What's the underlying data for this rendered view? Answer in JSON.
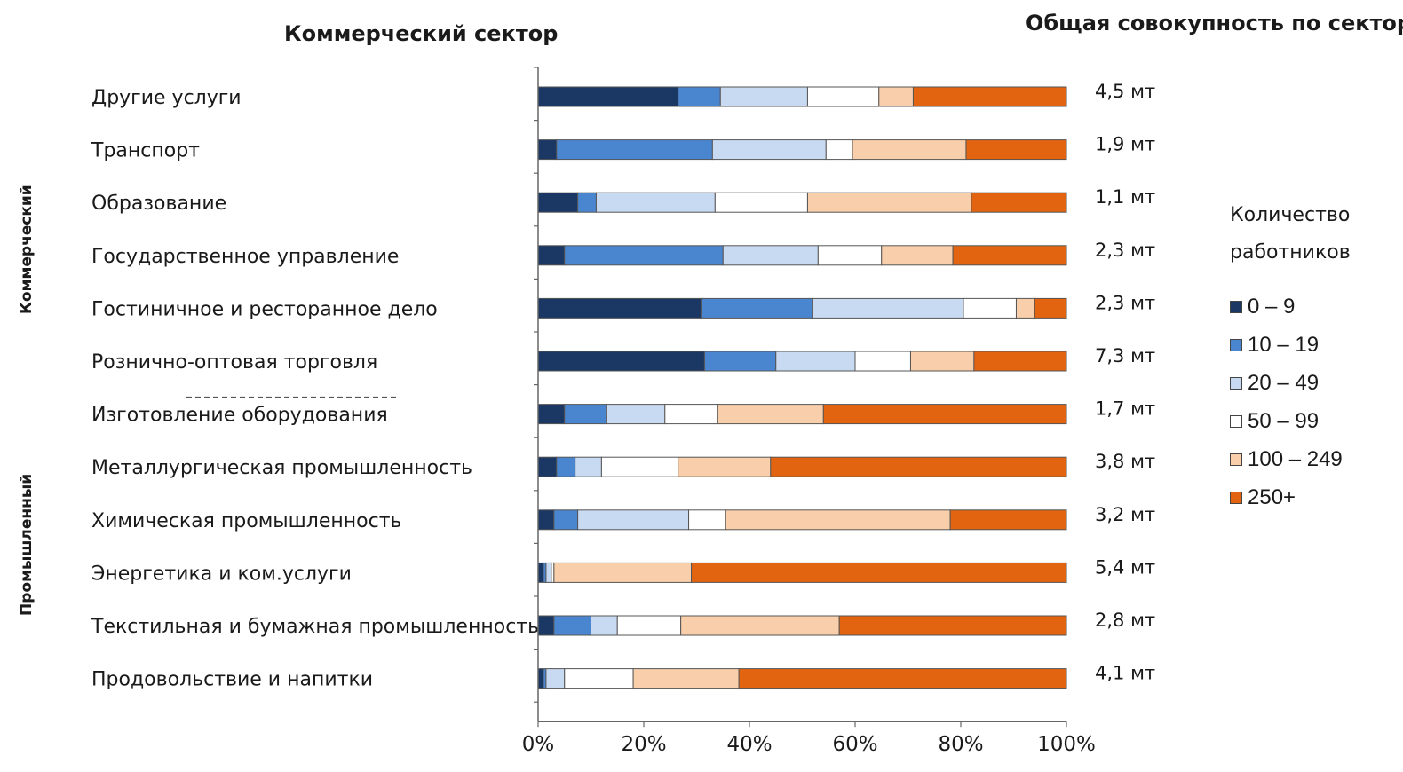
{
  "header": {
    "left_title": "Коммерческий сектор",
    "right_title": "Общая совокупность по сектору"
  },
  "groups": {
    "commercial": "Коммерческий",
    "industrial": "Промышленный"
  },
  "legend": {
    "title_line1": "Количество",
    "title_line2": "работников",
    "items": [
      {
        "label": "0 –  9",
        "color": "#1b3763"
      },
      {
        "label": "10 –  19",
        "color": "#4a86d0"
      },
      {
        "label": "20 –  49",
        "color": "#c8daf1"
      },
      {
        "label": "50 –  99",
        "color": "#ffffff"
      },
      {
        "label": "100 –  249",
        "color": "#f9cfab"
      },
      {
        "label": "250+",
        "color": "#e26410"
      }
    ]
  },
  "chart_data": {
    "type": "bar",
    "orientation": "horizontal",
    "stacked": true,
    "percent": true,
    "categories": [
      "Другие услуги",
      "Транспорт",
      "Образование",
      "Государственное управление",
      "Гостиничное и ресторанное дело",
      "Рознично-оптовая торговля",
      "Изготовление оборудования",
      "Металлургическая промышленность",
      "Химическая промышленность",
      "Энергетика и ком.услуги",
      "Текстильная и бумажная промышленность",
      "Продовольствие и напитки"
    ],
    "totals": [
      "4,5 мт",
      "1,9 мт",
      "1,1 мт",
      "2,3 мт",
      "2,3 мт",
      "7,3 мт",
      "1,7 мт",
      "3,8 мт",
      "3,2 мт",
      "5,4 мт",
      "2,8 мт",
      "4,1 мт"
    ],
    "series": [
      {
        "name": "0 –  9",
        "color": "#1b3763",
        "values": [
          26.5,
          3.5,
          7.5,
          5,
          31,
          31.5,
          5,
          3.5,
          3,
          1,
          3,
          1
        ]
      },
      {
        "name": "10 –  19",
        "color": "#4a86d0",
        "values": [
          8,
          29.5,
          3.5,
          30,
          21,
          13.5,
          8,
          3.5,
          4.5,
          0.5,
          7,
          0.5
        ]
      },
      {
        "name": "20 –  49",
        "color": "#c8daf1",
        "values": [
          16.5,
          21.5,
          22.5,
          18,
          28.5,
          15,
          11,
          5,
          21,
          1,
          5,
          3.5
        ]
      },
      {
        "name": "50 –  99",
        "color": "#ffffff",
        "values": [
          13.5,
          5,
          17.5,
          12,
          10,
          10.5,
          10,
          14.5,
          7,
          0.5,
          12,
          13
        ]
      },
      {
        "name": "100 –  249",
        "color": "#f9cfab",
        "values": [
          6.5,
          21.5,
          31,
          13.5,
          3.5,
          12,
          20,
          17.5,
          42.5,
          26,
          30,
          20
        ]
      },
      {
        "name": "250+",
        "color": "#e26410",
        "values": [
          29,
          19,
          18,
          21.5,
          6,
          17.5,
          46,
          56,
          22,
          71,
          43,
          62
        ]
      }
    ],
    "xlim": [
      0,
      100
    ],
    "xticks": [
      "0%",
      "20%",
      "40%",
      "60%",
      "80%",
      "100%"
    ],
    "xlabel": "",
    "ylabel": "",
    "grid": false,
    "legend_position": "right"
  }
}
